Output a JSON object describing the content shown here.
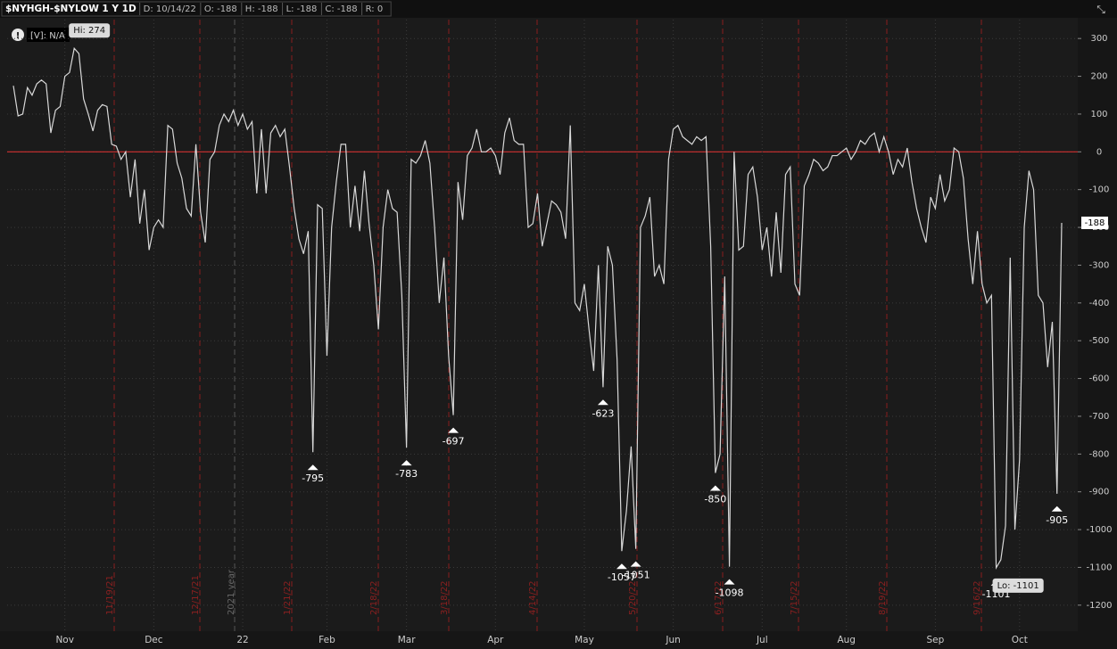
{
  "header": {
    "symbol": "$NYHGH-$NYLOW 1 Y 1D",
    "fields": [
      "D: 10/14/22",
      "O: -188",
      "H: -188",
      "L: -188",
      "C: -188",
      "R: 0"
    ]
  },
  "chart_data": {
    "type": "line",
    "volume_label": "[V]: N/A",
    "categories": [
      null,
      null,
      null,
      null,
      null,
      null,
      null,
      null,
      null,
      null,
      null,
      "Nov",
      null,
      null,
      null,
      null,
      null,
      null,
      null,
      null,
      null,
      null,
      null,
      null,
      null,
      null,
      null,
      null,
      null,
      null,
      "Dec",
      null,
      null,
      null,
      null,
      null,
      null,
      null,
      null,
      null,
      null,
      null,
      null,
      null,
      null,
      null,
      null,
      null,
      null,
      "22",
      null,
      null,
      null,
      null,
      null,
      null,
      null,
      null,
      null,
      null,
      null,
      null,
      null,
      null,
      null,
      null,
      null,
      "Feb",
      null,
      null,
      null,
      null,
      null,
      null,
      null,
      null,
      null,
      null,
      null,
      null,
      null,
      null,
      null,
      null,
      "Mar",
      null,
      null,
      null,
      null,
      null,
      null,
      null,
      null,
      null,
      null,
      null,
      null,
      null,
      null,
      null,
      null,
      null,
      null,
      "Apr",
      null,
      null,
      null,
      null,
      null,
      null,
      null,
      null,
      null,
      null,
      null,
      null,
      null,
      null,
      null,
      null,
      null,
      null,
      "May",
      null,
      null,
      null,
      null,
      null,
      null,
      null,
      null,
      null,
      null,
      null,
      null,
      null,
      null,
      null,
      null,
      null,
      null,
      "Jun",
      null,
      null,
      null,
      null,
      null,
      null,
      null,
      null,
      null,
      null,
      null,
      null,
      null,
      null,
      null,
      null,
      null,
      null,
      "Jul",
      null,
      null,
      null,
      null,
      null,
      null,
      null,
      null,
      null,
      null,
      null,
      null,
      null,
      null,
      null,
      null,
      null,
      "Aug",
      null,
      null,
      null,
      null,
      null,
      null,
      null,
      null,
      null,
      null,
      null,
      null,
      null,
      null,
      null,
      null,
      null,
      null,
      "Sep",
      null,
      null,
      null,
      null,
      null,
      null,
      null,
      null,
      null,
      null,
      null,
      null,
      null,
      null,
      null,
      null,
      null,
      "Oct",
      null,
      null,
      null,
      null,
      null,
      null,
      null,
      null,
      null
    ],
    "values": [
      175,
      95,
      100,
      170,
      150,
      180,
      190,
      180,
      50,
      110,
      120,
      200,
      210,
      274,
      260,
      140,
      100,
      55,
      110,
      125,
      120,
      20,
      15,
      -20,
      0,
      -120,
      -20,
      -190,
      -100,
      -260,
      -200,
      -180,
      -200,
      70,
      60,
      -30,
      -70,
      -150,
      -170,
      20,
      -160,
      -240,
      -20,
      0,
      70,
      100,
      80,
      110,
      70,
      100,
      60,
      80,
      -110,
      60,
      -110,
      50,
      70,
      40,
      60,
      -40,
      -150,
      -230,
      -270,
      -210,
      -795,
      -140,
      -150,
      -540,
      -200,
      -80,
      20,
      20,
      -200,
      -90,
      -210,
      -50,
      -190,
      -300,
      -470,
      -200,
      -100,
      -150,
      -160,
      -380,
      -783,
      -20,
      -30,
      -10,
      30,
      -30,
      -200,
      -400,
      -280,
      -540,
      -697,
      -80,
      -180,
      -10,
      10,
      60,
      0,
      0,
      10,
      -10,
      -60,
      50,
      90,
      30,
      20,
      20,
      -200,
      -190,
      -110,
      -250,
      -190,
      -130,
      -140,
      -160,
      -230,
      70,
      -400,
      -420,
      -350,
      -470,
      -580,
      -300,
      -623,
      -250,
      -300,
      -550,
      -1057,
      -950,
      -780,
      -1051,
      -200,
      -170,
      -120,
      -330,
      -300,
      -350,
      -20,
      60,
      70,
      40,
      30,
      20,
      40,
      30,
      40,
      -250,
      -850,
      -800,
      -330,
      -1098,
      0,
      -260,
      -250,
      -60,
      -40,
      -120,
      -260,
      -200,
      -330,
      -160,
      -320,
      -60,
      -40,
      -350,
      -380,
      -90,
      -60,
      -20,
      -30,
      -50,
      -40,
      -10,
      -10,
      0,
      10,
      -20,
      0,
      30,
      20,
      40,
      50,
      0,
      40,
      0,
      -60,
      -20,
      -40,
      10,
      -80,
      -150,
      -200,
      -240,
      -120,
      -150,
      -60,
      -130,
      -100,
      10,
      0,
      -70,
      -230,
      -350,
      -210,
      -350,
      -400,
      -380,
      -1101,
      -1080,
      -990,
      -280,
      -1000,
      -815,
      -200,
      -50,
      -100,
      -380,
      -400,
      -570,
      -450,
      -905,
      -188
    ],
    "color": "#d8d8d8",
    "ylim": [
      -1250,
      350
    ],
    "yticks": [
      -1200,
      -1100,
      -1000,
      -900,
      -800,
      -700,
      -600,
      -500,
      -400,
      -300,
      -200,
      -100,
      0,
      100,
      200,
      300
    ],
    "grid": true,
    "zero_line_color": "#d03030",
    "lows": [
      -795,
      -783,
      -697,
      -623,
      -1057,
      -1051,
      -850,
      -1098,
      -1101,
      -905
    ],
    "high": {
      "value": 274,
      "label": "Hi: 274"
    },
    "low": {
      "value": -1101,
      "label": "Lo: -1101"
    },
    "last": -188,
    "expirations": [
      "11/19/21",
      "12/17/21",
      "1/21/22",
      "2/18/22",
      "3/18/22",
      "4/14/22",
      "5/20/22",
      "6/17/22",
      "7/15/22",
      "8/19/22",
      "9/16/22"
    ],
    "year_marker": "2021 year"
  }
}
